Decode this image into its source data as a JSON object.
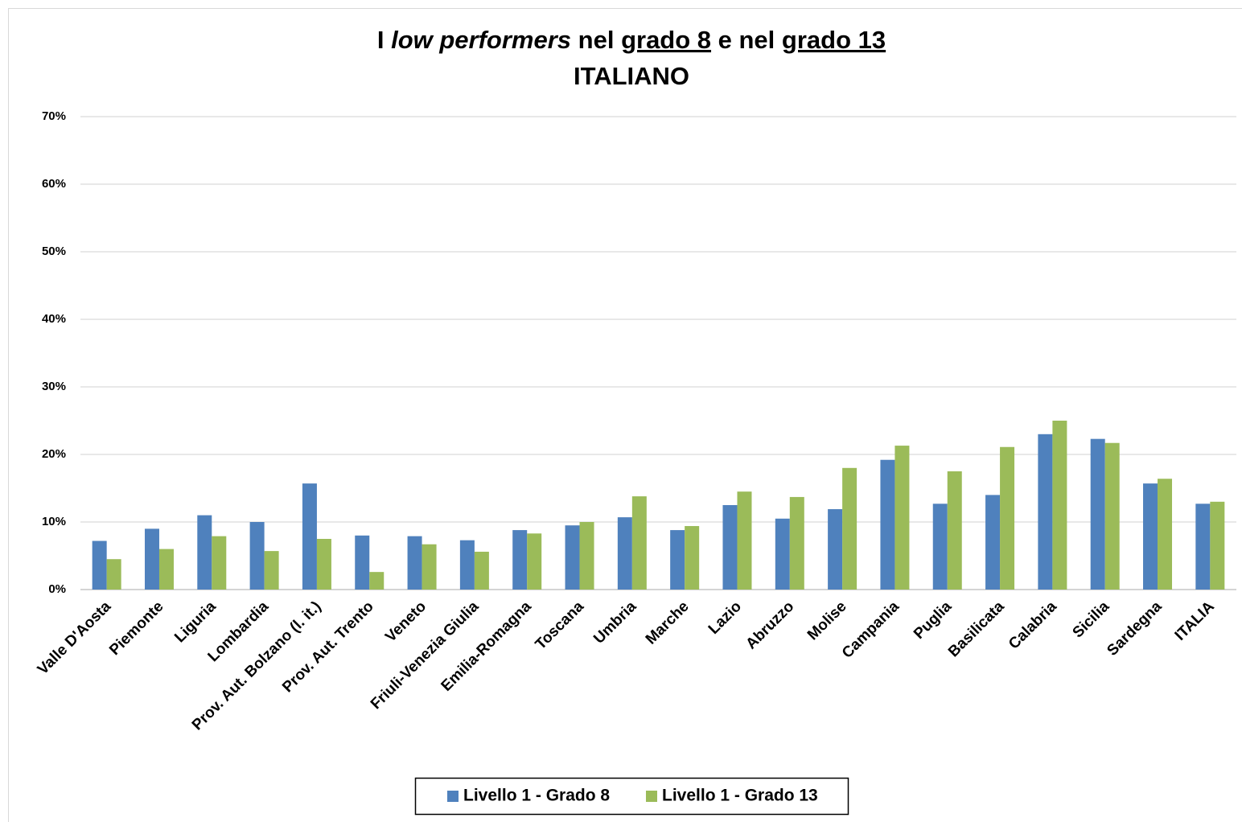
{
  "chart_data": {
    "type": "bar",
    "title": [
      "I ",
      "low performers",
      " nel ",
      "grado 8",
      " e nel ",
      "grado 13"
    ],
    "subtitle": "ITALIANO",
    "categories": [
      "Valle D'Aosta",
      "Piemonte",
      "Liguria",
      "Lombardia",
      "Prov. Aut. Bolzano (l. it.)",
      "Prov. Aut. Trento",
      "Veneto",
      "Friuli-Venezia Giulia",
      "Emilia-Romagna",
      "Toscana",
      "Umbria",
      "Marche",
      "Lazio",
      "Abruzzo",
      "Molise",
      "Campania",
      "Puglia",
      "Basilicata",
      "Calabria",
      "Sicilia",
      "Sardegna",
      "ITALIA"
    ],
    "series": [
      {
        "name": "Livello 1 - Grado 8",
        "color": "#4f81bd",
        "values": [
          7.2,
          9.0,
          11.0,
          10.0,
          15.7,
          8.0,
          7.9,
          7.3,
          8.8,
          9.5,
          10.7,
          8.8,
          12.5,
          10.5,
          11.9,
          19.2,
          12.7,
          14.0,
          23.0,
          22.3,
          15.7,
          12.7
        ]
      },
      {
        "name": "Livello 1 - Grado 13",
        "color": "#9bbb59",
        "values": [
          4.5,
          6.0,
          7.9,
          5.7,
          7.5,
          2.6,
          6.7,
          5.6,
          8.3,
          10.0,
          13.8,
          9.4,
          14.5,
          13.7,
          18.0,
          21.3,
          17.5,
          21.1,
          25.0,
          21.7,
          16.4,
          13.0
        ]
      }
    ],
    "ylim": [
      0,
      70
    ],
    "yticks": [
      {
        "value": 0,
        "label": "0%"
      },
      {
        "value": 10,
        "label": "10%"
      },
      {
        "value": 20,
        "label": "20%"
      },
      {
        "value": 30,
        "label": "30%"
      },
      {
        "value": 40,
        "label": "40%"
      },
      {
        "value": 50,
        "label": "50%"
      },
      {
        "value": 60,
        "label": "60%"
      },
      {
        "value": 70,
        "label": "70%"
      }
    ],
    "grid": true,
    "legend": "bottom"
  }
}
